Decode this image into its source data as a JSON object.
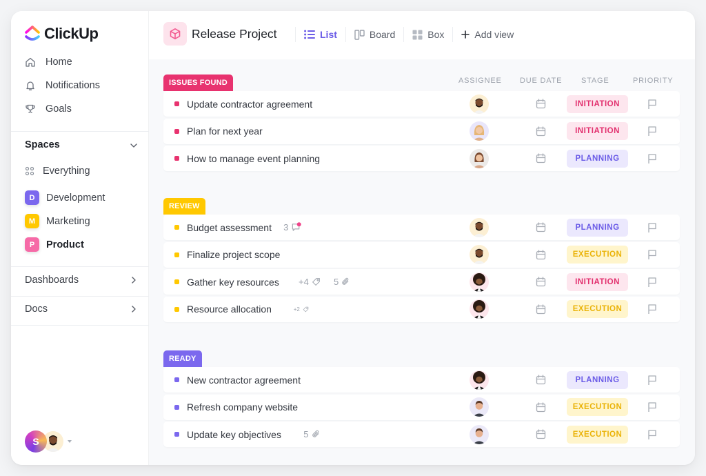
{
  "app": {
    "name": "ClickUp"
  },
  "sidebar": {
    "nav": [
      {
        "label": "Home",
        "icon": "home-icon"
      },
      {
        "label": "Notifications",
        "icon": "bell-icon"
      },
      {
        "label": "Goals",
        "icon": "trophy-icon"
      }
    ],
    "spaces_title": "Spaces",
    "spaces": [
      {
        "label": "Everything",
        "icon": "grid-dots-icon"
      },
      {
        "label": "Development",
        "initial": "D",
        "color": "#7b68ee"
      },
      {
        "label": "Marketing",
        "initial": "M",
        "color": "#ffc800"
      },
      {
        "label": "Product",
        "initial": "P",
        "color": "#f66aa7",
        "active": true
      }
    ],
    "links": [
      {
        "label": "Dashboards"
      },
      {
        "label": "Docs"
      }
    ],
    "user_initial": "S"
  },
  "header": {
    "project_title": "Release Project",
    "views": [
      {
        "label": "List",
        "active": true
      },
      {
        "label": "Board"
      },
      {
        "label": "Box"
      },
      {
        "label": "Add view"
      }
    ]
  },
  "columns": [
    "ASSIGNEE",
    "DUE DATE",
    "STAGE",
    "PRIORITY"
  ],
  "stage_colors": {
    "INITIATION": {
      "bg": "#fde6ee",
      "fg": "#e2306e"
    },
    "PLANNING": {
      "bg": "#ebe8fd",
      "fg": "#6b5ce7"
    },
    "EXECUTION": {
      "bg": "#fff5cc",
      "fg": "#eab308"
    }
  },
  "groups": [
    {
      "label": "ISSUES FOUND",
      "color": "#e8336f",
      "tasks": [
        {
          "name": "Update contractor agreement",
          "stage": "INITIATION",
          "assignee": "man-beard"
        },
        {
          "name": "Plan for next year",
          "stage": "INITIATION",
          "assignee": "woman-blonde"
        },
        {
          "name": "How to manage event planning",
          "stage": "PLANNING",
          "assignee": "woman-brunette"
        }
      ]
    },
    {
      "label": "REVIEW",
      "color": "#ffc800",
      "tasks": [
        {
          "name": "Budget assessment",
          "stage": "PLANNING",
          "assignee": "man-beard",
          "comments": "3"
        },
        {
          "name": "Finalize project scope",
          "stage": "EXECUTION",
          "assignee": "man-beard"
        },
        {
          "name": "Gather key resources",
          "stage": "INITIATION",
          "assignee": "man-curly",
          "tags": "+4",
          "attachments": "5"
        },
        {
          "name": "Resource allocation",
          "stage": "EXECUTION",
          "assignee": "man-curly",
          "tags_small": "+2"
        }
      ]
    },
    {
      "label": "READY",
      "color": "#7b68ee",
      "tasks": [
        {
          "name": "New contractor agreement",
          "stage": "PLANNING",
          "assignee": "man-curly"
        },
        {
          "name": "Refresh company website",
          "stage": "EXECUTION",
          "assignee": "man-short"
        },
        {
          "name": "Update key objectives",
          "stage": "EXECUTION",
          "assignee": "man-short",
          "attachments": "5"
        }
      ]
    }
  ]
}
